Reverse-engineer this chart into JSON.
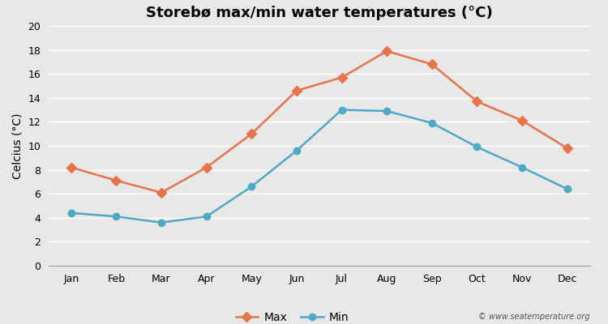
{
  "title": "Storebø max/min water temperatures (°C)",
  "ylabel": "Celcius (°C)",
  "months": [
    "Jan",
    "Feb",
    "Mar",
    "Apr",
    "May",
    "Jun",
    "Jul",
    "Aug",
    "Sep",
    "Oct",
    "Nov",
    "Dec"
  ],
  "max_values": [
    8.2,
    7.1,
    6.1,
    8.2,
    11.0,
    14.6,
    15.7,
    17.9,
    16.8,
    13.7,
    12.1,
    9.8
  ],
  "min_values": [
    4.4,
    4.1,
    3.6,
    4.1,
    6.6,
    9.6,
    13.0,
    12.9,
    11.9,
    9.9,
    8.2,
    6.4
  ],
  "max_color": "#E8724A",
  "min_color": "#4FA8C5",
  "max_marker": "D",
  "min_marker": "o",
  "max_label": "Max",
  "min_label": "Min",
  "ylim": [
    0,
    20
  ],
  "yticks": [
    0,
    2,
    4,
    6,
    8,
    10,
    12,
    14,
    16,
    18,
    20
  ],
  "background_color": "#e8e8e8",
  "grid_color": "#ffffff",
  "watermark": "© www.seatemperature.org",
  "title_fontsize": 13,
  "axis_label_fontsize": 10,
  "legend_fontsize": 10,
  "tick_fontsize": 9,
  "line_width": 1.8,
  "marker_size": 6
}
